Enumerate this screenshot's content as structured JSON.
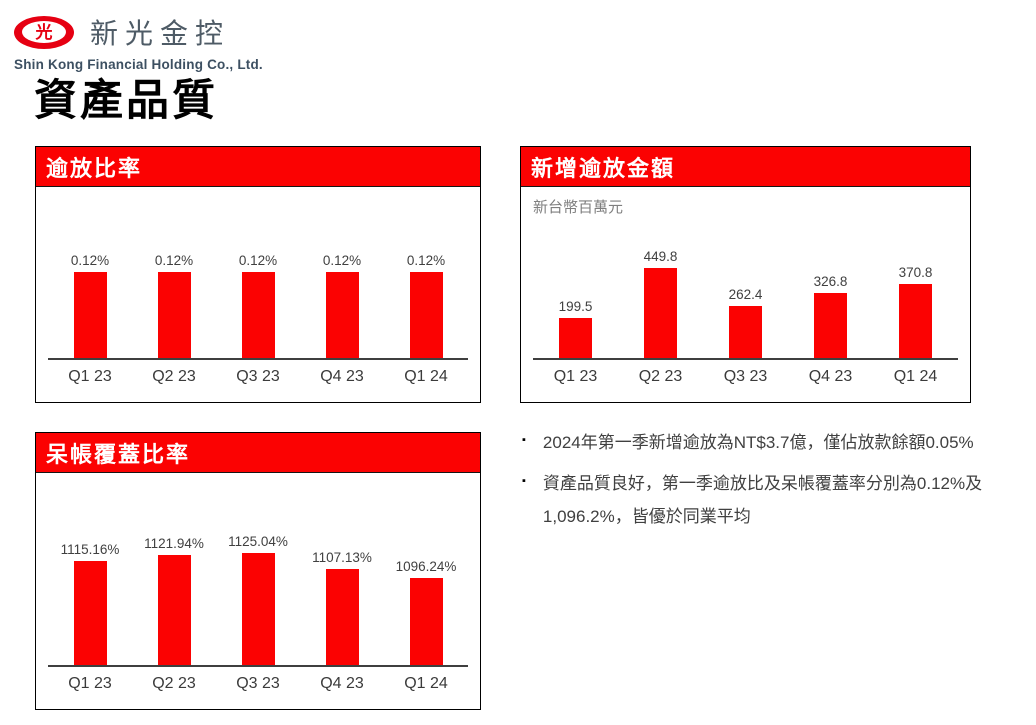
{
  "brand": {
    "logo_glyph": "光",
    "name_zh": "新光金控",
    "name_en": "Shin Kong Financial Holding Co., Ltd."
  },
  "page": {
    "title": "資產品質"
  },
  "colors": {
    "chart_red": "#fb0202",
    "logo_red": "#e60012",
    "header_text": "#ffffff",
    "note_text": "#404040"
  },
  "chart_data": [
    {
      "id": "npl-ratio",
      "type": "bar",
      "title": "逾放比率",
      "subtitle": "",
      "categories": [
        "Q1 23",
        "Q2 23",
        "Q3 23",
        "Q4 23",
        "Q1 24"
      ],
      "values": [
        0.12,
        0.12,
        0.12,
        0.12,
        0.12
      ],
      "value_labels": [
        "0.12%",
        "0.12%",
        "0.12%",
        "0.12%",
        "0.12%"
      ],
      "ylim": [
        0,
        0.14
      ],
      "grid": false,
      "legend": false
    },
    {
      "id": "new-npl-amount",
      "type": "bar",
      "title": "新增逾放金額",
      "subtitle": "新台幣百萬元",
      "categories": [
        "Q1 23",
        "Q2 23",
        "Q3 23",
        "Q4 23",
        "Q1 24"
      ],
      "values": [
        199.5,
        449.8,
        262.4,
        326.8,
        370.8
      ],
      "value_labels": [
        "199.5",
        "449.8",
        "262.4",
        "326.8",
        "370.8"
      ],
      "ylim": [
        0,
        500
      ],
      "grid": false,
      "legend": false
    },
    {
      "id": "coverage-ratio",
      "type": "bar",
      "title": "呆帳覆蓋比率",
      "subtitle": "",
      "categories": [
        "Q1 23",
        "Q2 23",
        "Q3 23",
        "Q4 23",
        "Q1 24"
      ],
      "values": [
        1115.16,
        1121.94,
        1125.04,
        1107.13,
        1096.24
      ],
      "value_labels": [
        "1115.16%",
        "1121.94%",
        "1125.04%",
        "1107.13%",
        "1096.24%"
      ],
      "ylim": [
        1000,
        1130
      ],
      "grid": false,
      "legend": false
    }
  ],
  "notes": {
    "marker": "▪",
    "items": [
      "2024年第一季新增逾放為NT$3.7億，僅佔放款餘額0.05%",
      "資產品質良好，第一季逾放比及呆帳覆蓋率分別為0.12%及1,096.2%，皆優於同業平均"
    ]
  }
}
